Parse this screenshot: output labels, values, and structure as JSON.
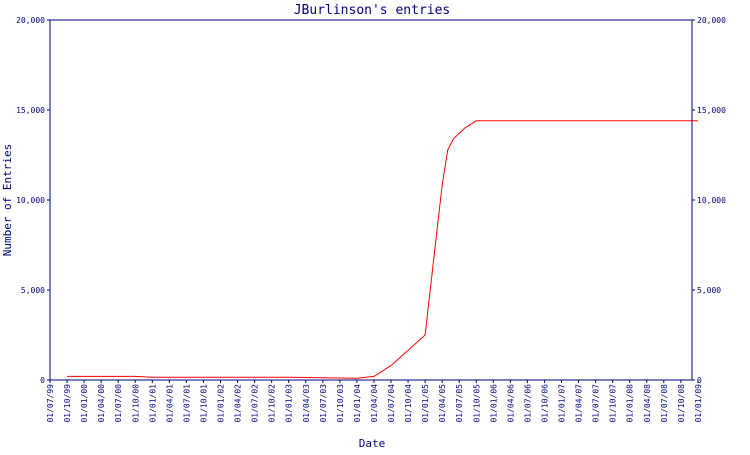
{
  "chart_data": {
    "type": "line",
    "title": "JBurlinson's entries",
    "xlabel": "Date",
    "ylabel": "Number of Entries",
    "ylim": [
      0,
      20000
    ],
    "y_ticks": [
      0,
      5000,
      10000,
      15000,
      20000
    ],
    "y_tick_labels": [
      "0",
      "5,000",
      "10,000",
      "15,000",
      "20,000"
    ],
    "right_axis_mirrors_left": true,
    "grid": false,
    "x_tick_labels": [
      "01/07/99",
      "01/10/99",
      "01/01/00",
      "01/04/00",
      "01/07/00",
      "01/10/00",
      "01/01/01",
      "01/04/01",
      "01/07/01",
      "01/10/01",
      "01/01/02",
      "01/04/02",
      "01/07/02",
      "01/10/02",
      "01/01/03",
      "01/04/03",
      "01/07/03",
      "01/10/03",
      "01/01/04",
      "01/04/04",
      "01/07/04",
      "01/10/04",
      "01/01/05",
      "01/04/05",
      "01/07/05",
      "01/10/05",
      "01/01/06",
      "01/04/06",
      "01/07/06",
      "01/10/06",
      "01/01/07",
      "01/04/07",
      "01/07/07",
      "01/10/07",
      "01/01/08",
      "01/04/08",
      "01/07/08",
      "01/10/08",
      "01/01/09"
    ],
    "series": [
      {
        "color": "#ff0000",
        "x": [
          "01/10/99",
          "01/10/00",
          "01/01/01",
          "01/01/03",
          "01/01/04",
          "01/04/04",
          "01/07/04",
          "01/01/05",
          "01/04/05",
          "01/05/05",
          "01/06/05",
          "01/07/05",
          "01/08/05",
          "01/10/05",
          "01/01/09"
        ],
        "y": [
          200,
          200,
          150,
          150,
          100,
          200,
          800,
          2500,
          10800,
          12800,
          13400,
          13700,
          14000,
          14400,
          14400
        ]
      }
    ]
  }
}
